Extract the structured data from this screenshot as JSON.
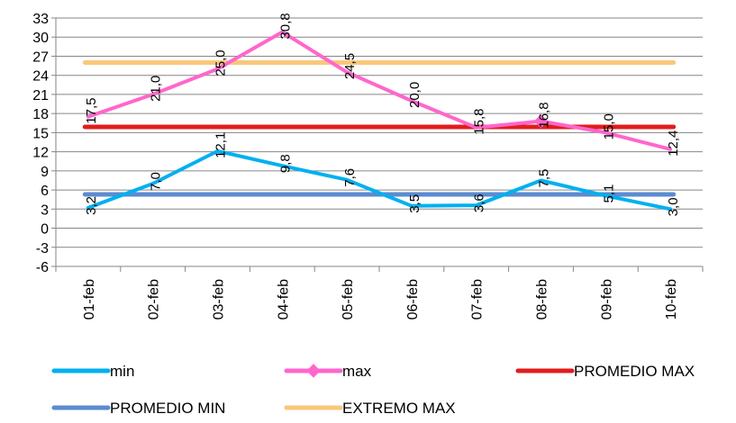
{
  "chart_data": {
    "type": "line",
    "categories": [
      "01-feb",
      "02-feb",
      "03-feb",
      "04-feb",
      "05-feb",
      "06-feb",
      "07-feb",
      "08-feb",
      "09-feb",
      "10-feb"
    ],
    "ylim": [
      -6,
      33
    ],
    "yticks": [
      "-6",
      "-3",
      "0",
      "3",
      "6",
      "9",
      "12",
      "15",
      "18",
      "21",
      "24",
      "27",
      "30",
      "33"
    ],
    "grid": true,
    "legend_position": "bottom",
    "series": [
      {
        "name": "min",
        "color": "#00B0F0",
        "marker": "none",
        "values": [
          3.2,
          7.0,
          12.1,
          9.8,
          7.6,
          3.5,
          3.6,
          7.5,
          5.1,
          3.0
        ],
        "labels": [
          "3,2",
          "7,0",
          "12,1",
          "9,8",
          "7,6",
          "3,5",
          "3,6",
          "7,5",
          "5,1",
          "3,0"
        ]
      },
      {
        "name": "max",
        "color": "#FF66CC",
        "marker": "diamond",
        "values": [
          17.5,
          21.0,
          25.0,
          30.8,
          24.5,
          20.0,
          15.8,
          16.8,
          15.0,
          12.4
        ],
        "labels": [
          "17,5",
          "21,0",
          "25,0",
          "30,8",
          "24,5",
          "20,0",
          "15,8",
          "16,8",
          "15,0",
          "12,4"
        ]
      },
      {
        "name": "PROMEDIO MAX",
        "color": "#E21C1C",
        "marker": "none",
        "values": [
          15.9,
          15.9,
          15.9,
          15.9,
          15.9,
          15.9,
          15.9,
          15.9,
          15.9,
          15.9
        ]
      },
      {
        "name": "PROMEDIO MIN",
        "color": "#5B8BD0",
        "marker": "none",
        "values": [
          5.3,
          5.3,
          5.3,
          5.3,
          5.3,
          5.3,
          5.3,
          5.3,
          5.3,
          5.3
        ]
      },
      {
        "name": "EXTREMO MAX",
        "color": "#FAC77A",
        "marker": "none",
        "values": [
          26.0,
          26.0,
          26.0,
          26.0,
          26.0,
          26.0,
          26.0,
          26.0,
          26.0,
          26.0
        ]
      }
    ]
  }
}
